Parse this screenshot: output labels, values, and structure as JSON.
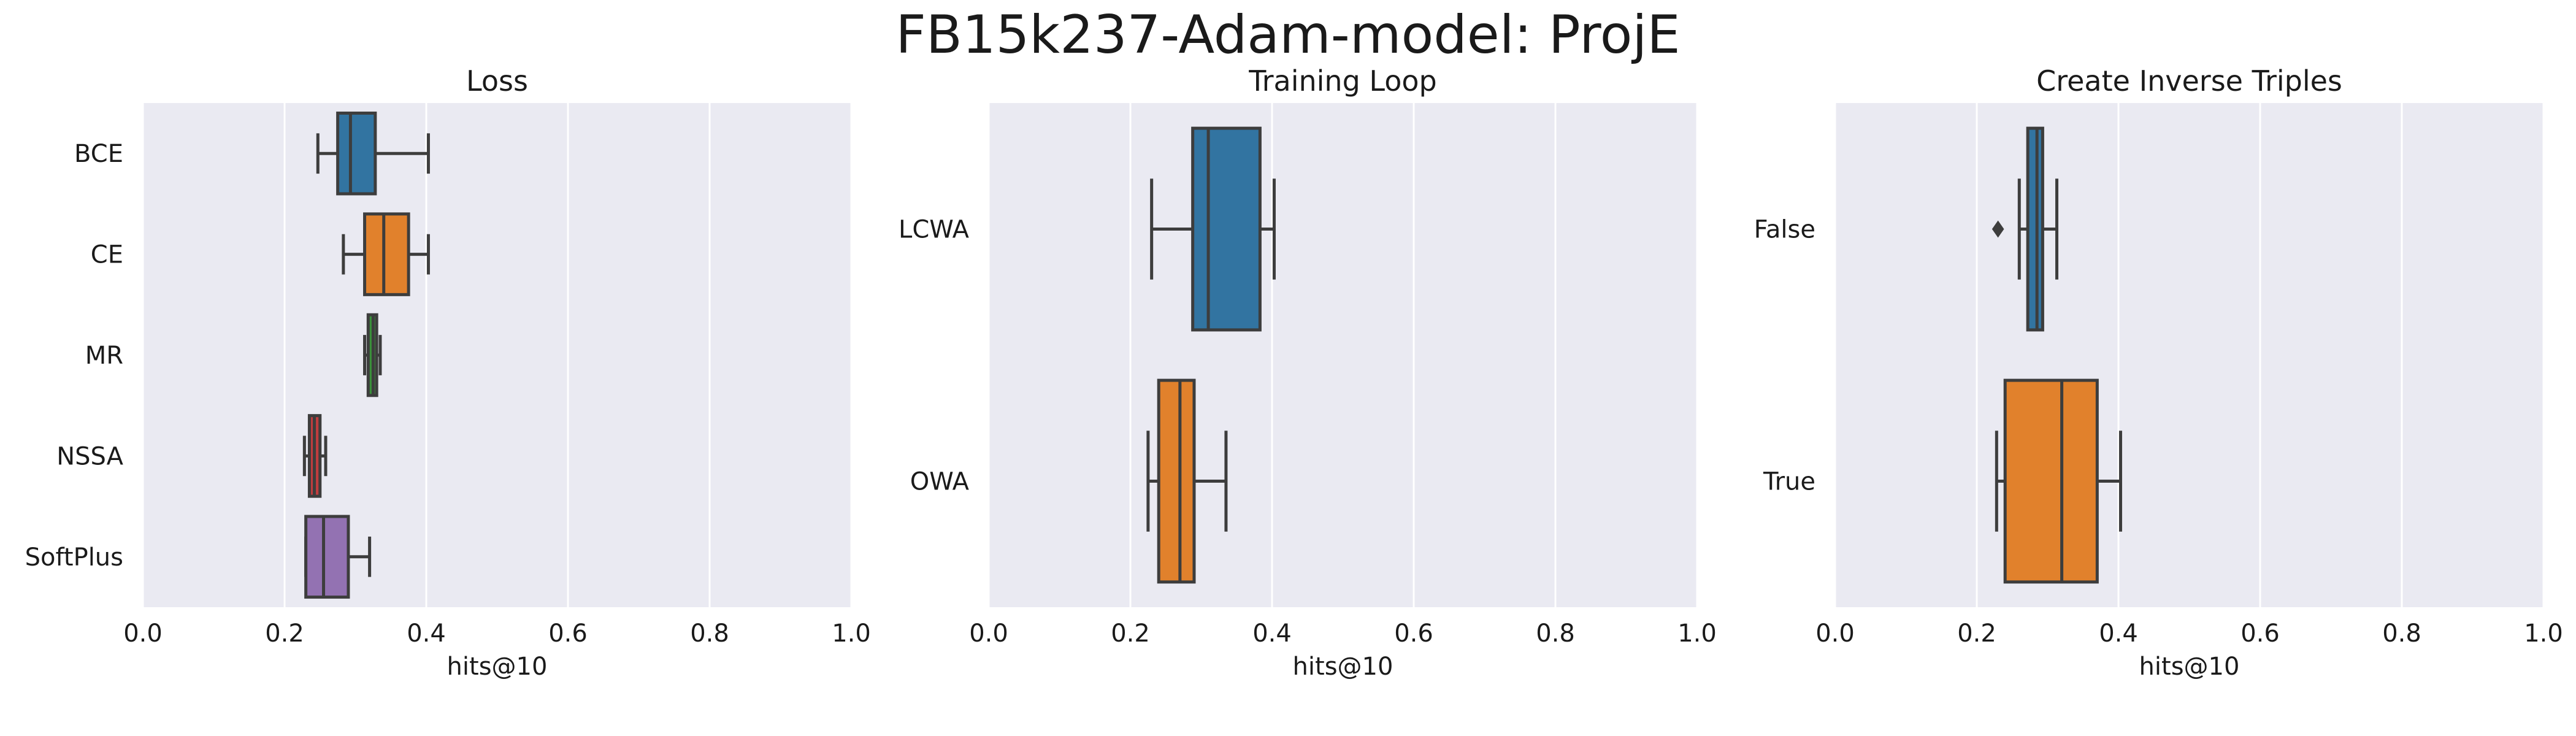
{
  "figure": {
    "title": "FB15k237-Adam-model: ProjE",
    "background": "#ffffff",
    "panel_background": "#eaeaf2",
    "grid_color": "#ffffff",
    "line_color": "#3d3d3d"
  },
  "chart_data": [
    {
      "type": "box",
      "orientation": "horizontal",
      "title": "Loss",
      "xlabel": "hits@10",
      "ylabel": "",
      "xlim": [
        0.0,
        1.0
      ],
      "xticks": [
        "0.0",
        "0.2",
        "0.4",
        "0.6",
        "0.8",
        "1.0"
      ],
      "grid": "vertical",
      "legend": "none",
      "categories": [
        "BCE",
        "CE",
        "MR",
        "NSSA",
        "SoftPlus"
      ],
      "boxes": [
        {
          "category": "BCE",
          "whislo": 0.247,
          "q1": 0.275,
          "med": 0.293,
          "q3": 0.328,
          "whishi": 0.403,
          "fliers": [],
          "color": "#3274a1"
        },
        {
          "category": "CE",
          "whislo": 0.283,
          "q1": 0.313,
          "med": 0.34,
          "q3": 0.375,
          "whishi": 0.403,
          "fliers": [],
          "color": "#e1812c"
        },
        {
          "category": "MR",
          "whislo": 0.313,
          "q1": 0.318,
          "med": 0.325,
          "q3": 0.33,
          "whishi": 0.335,
          "fliers": [],
          "color": "#3a923a"
        },
        {
          "category": "NSSA",
          "whislo": 0.228,
          "q1": 0.235,
          "med": 0.242,
          "q3": 0.25,
          "whishi": 0.258,
          "fliers": [],
          "color": "#c03d3e"
        },
        {
          "category": "SoftPlus",
          "whislo": 0.23,
          "q1": 0.23,
          "med": 0.255,
          "q3": 0.29,
          "whishi": 0.32,
          "fliers": [],
          "color": "#9372b2"
        }
      ]
    },
    {
      "type": "box",
      "orientation": "horizontal",
      "title": "Training Loop",
      "xlabel": "hits@10",
      "ylabel": "",
      "xlim": [
        0.0,
        1.0
      ],
      "xticks": [
        "0.0",
        "0.2",
        "0.4",
        "0.6",
        "0.8",
        "1.0"
      ],
      "grid": "vertical",
      "legend": "none",
      "categories": [
        "LCWA",
        "OWA"
      ],
      "boxes": [
        {
          "category": "LCWA",
          "whislo": 0.23,
          "q1": 0.288,
          "med": 0.31,
          "q3": 0.383,
          "whishi": 0.403,
          "fliers": [],
          "color": "#3274a1"
        },
        {
          "category": "OWA",
          "whislo": 0.225,
          "q1": 0.24,
          "med": 0.27,
          "q3": 0.29,
          "whishi": 0.335,
          "fliers": [],
          "color": "#e1812c"
        }
      ]
    },
    {
      "type": "box",
      "orientation": "horizontal",
      "title": "Create Inverse Triples",
      "xlabel": "hits@10",
      "ylabel": "",
      "xlim": [
        0.0,
        1.0
      ],
      "xticks": [
        "0.0",
        "0.2",
        "0.4",
        "0.6",
        "0.8",
        "1.0"
      ],
      "grid": "vertical",
      "legend": "none",
      "categories": [
        "False",
        "True"
      ],
      "boxes": [
        {
          "category": "False",
          "whislo": 0.26,
          "q1": 0.272,
          "med": 0.285,
          "q3": 0.293,
          "whishi": 0.313,
          "fliers": [
            0.23
          ],
          "color": "#3274a1"
        },
        {
          "category": "True",
          "whislo": 0.228,
          "q1": 0.24,
          "med": 0.32,
          "q3": 0.37,
          "whishi": 0.403,
          "fliers": [],
          "color": "#e1812c"
        }
      ]
    }
  ]
}
